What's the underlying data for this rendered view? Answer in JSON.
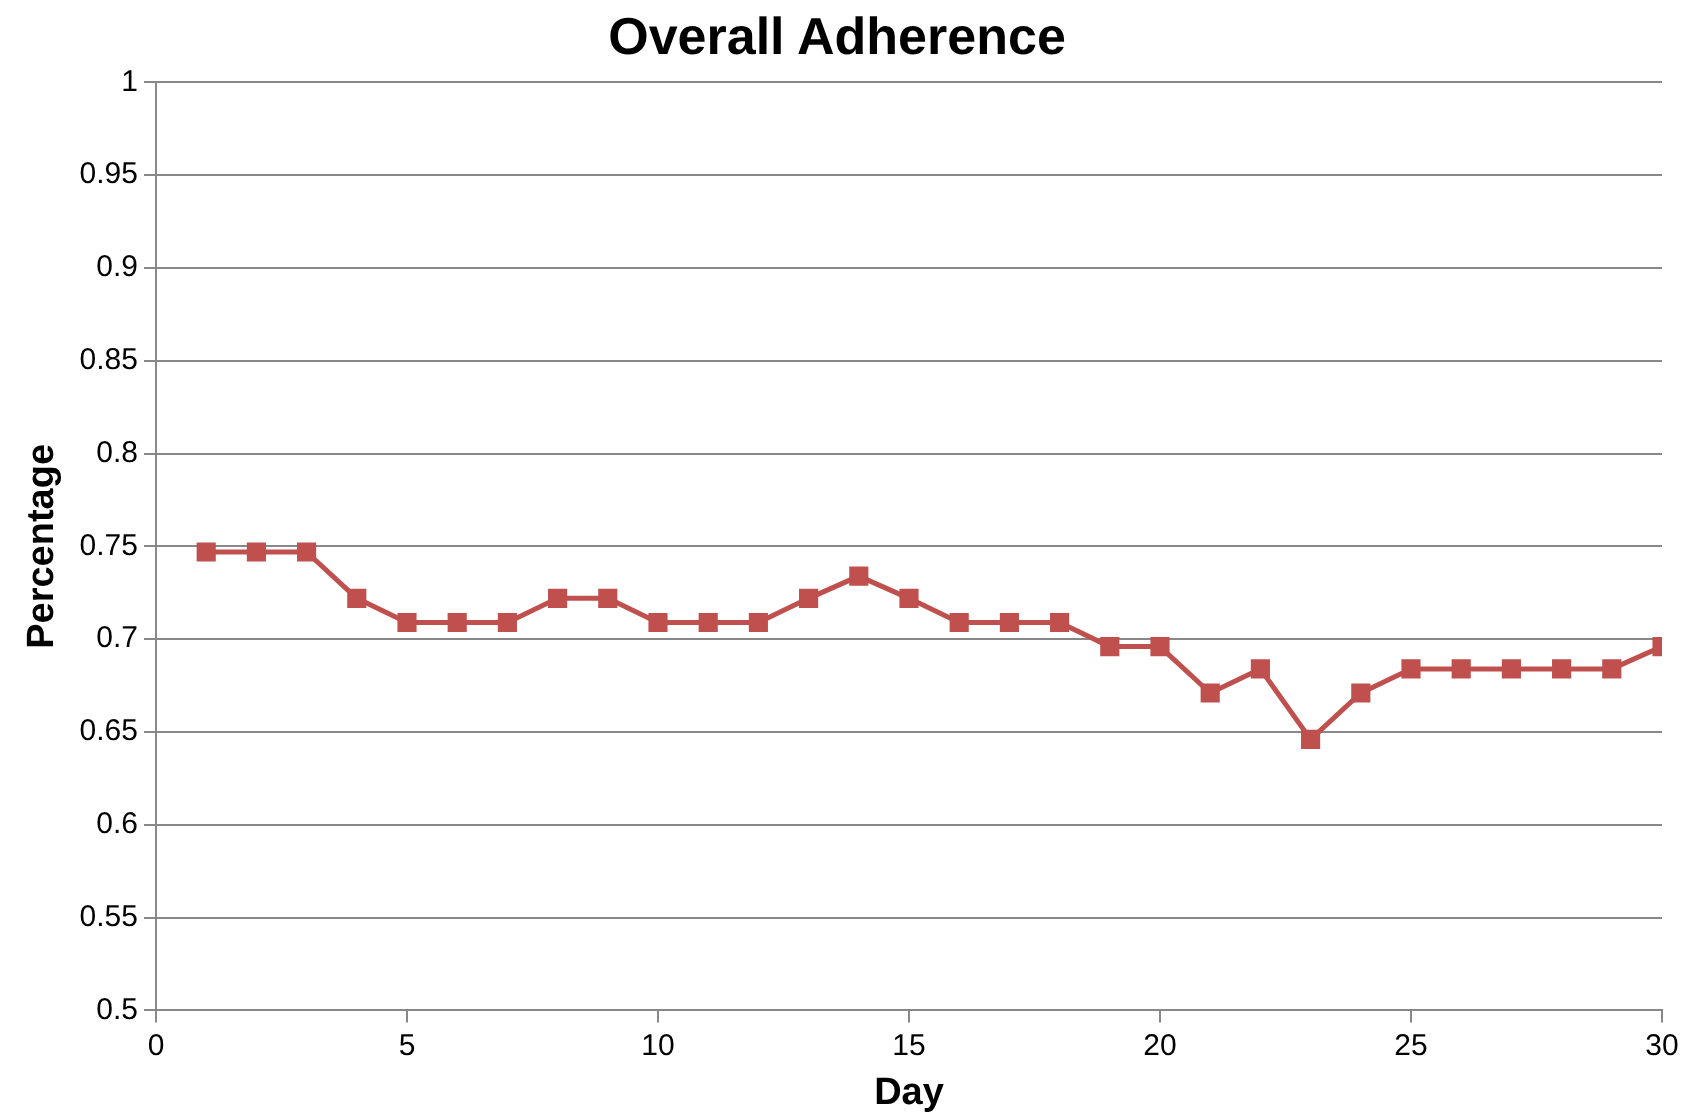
{
  "chart_data": {
    "type": "line",
    "title": "Overall Adherence",
    "xlabel": "Day",
    "ylabel": "Percentage",
    "x": [
      1,
      2,
      3,
      4,
      5,
      6,
      7,
      8,
      9,
      10,
      11,
      12,
      13,
      14,
      15,
      16,
      17,
      18,
      19,
      20,
      21,
      22,
      23,
      24,
      25,
      26,
      27,
      28,
      29,
      30
    ],
    "series": [
      {
        "color": "#c0504d",
        "values": [
          0.747,
          0.747,
          0.747,
          0.722,
          0.709,
          0.709,
          0.709,
          0.722,
          0.722,
          0.709,
          0.709,
          0.709,
          0.722,
          0.734,
          0.722,
          0.709,
          0.709,
          0.709,
          0.696,
          0.696,
          0.671,
          0.684,
          0.646,
          0.671,
          0.684,
          0.684,
          0.684,
          0.684,
          0.684,
          0.696
        ]
      }
    ],
    "xlim": [
      0,
      30
    ],
    "xticks": [
      0,
      5,
      10,
      15,
      20,
      25,
      30
    ],
    "ylim": [
      0.5,
      1
    ],
    "yticks": [
      0.5,
      0.55,
      0.6,
      0.65,
      0.7,
      0.75,
      0.8,
      0.85,
      0.9,
      0.95,
      1
    ],
    "grid": "y",
    "legend": false,
    "marker": "square",
    "line_style": "solid"
  }
}
